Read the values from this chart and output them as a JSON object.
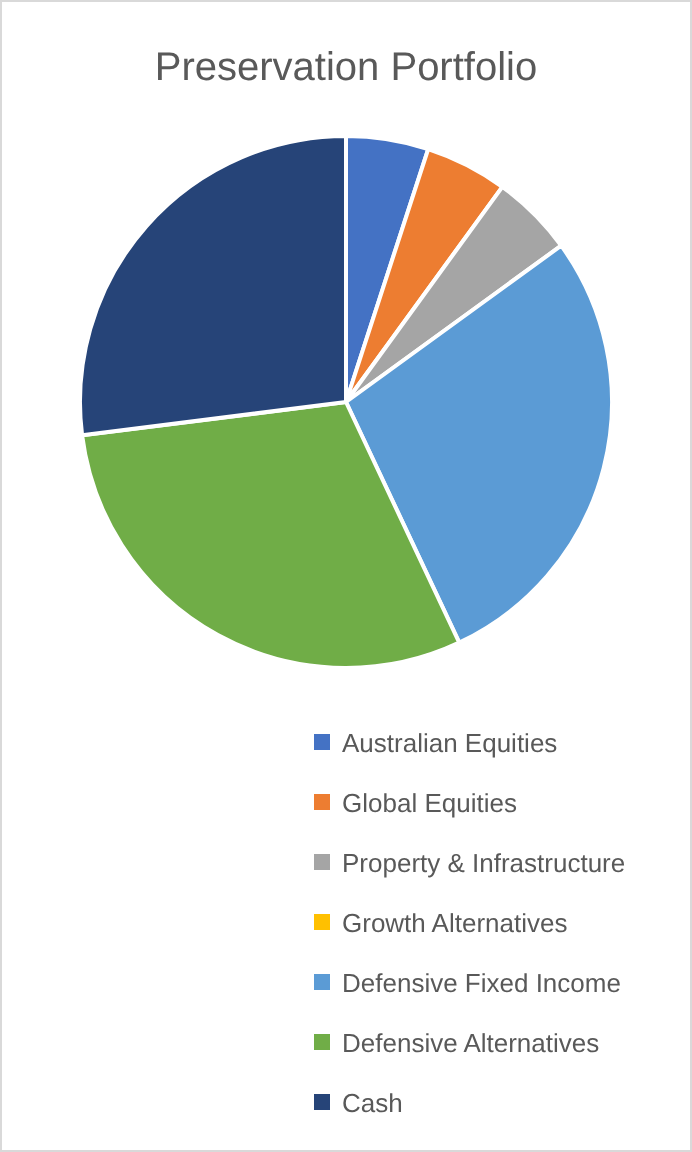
{
  "chart_data": {
    "type": "pie",
    "title": "Preservation Portfolio",
    "categories": [
      "Australian Equities",
      "Global Equities",
      "Property & Infrastructure",
      "Growth Alternatives",
      "Defensive Fixed Income",
      "Defensive Alternatives",
      "Cash"
    ],
    "values": [
      5,
      5,
      5,
      0,
      28,
      30,
      27
    ],
    "colors": [
      "#4472c4",
      "#ed7d31",
      "#a5a5a5",
      "#ffc000",
      "#5b9bd5",
      "#70ad47",
      "#264478"
    ],
    "legend": "bottom"
  }
}
